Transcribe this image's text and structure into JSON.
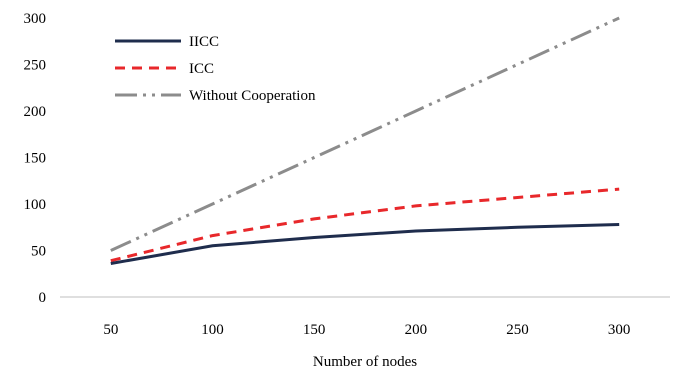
{
  "chart_data": {
    "type": "line",
    "title": "",
    "xlabel": "Number of nodes",
    "ylabel": "",
    "x": [
      50,
      100,
      150,
      200,
      250,
      300
    ],
    "xlim": [
      25,
      325
    ],
    "ylim": [
      0,
      300
    ],
    "yticks": [
      0,
      50,
      100,
      150,
      200,
      250,
      300
    ],
    "xticks": [
      50,
      100,
      150,
      200,
      250,
      300
    ],
    "grid": false,
    "legend_position": "top-left",
    "series": [
      {
        "name": "IICC",
        "values": [
          36,
          55,
          64,
          71,
          75,
          78
        ],
        "color": "#1f2d4d",
        "dash": "solid"
      },
      {
        "name": "ICC",
        "values": [
          39,
          66,
          84,
          98,
          107,
          116
        ],
        "color": "#e8282b",
        "dash": "dashed"
      },
      {
        "name": "Without Cooperation",
        "values": [
          50,
          100,
          150,
          200,
          250,
          300
        ],
        "color": "#8c8c8c",
        "dash": "dash-dot-dot"
      }
    ]
  }
}
